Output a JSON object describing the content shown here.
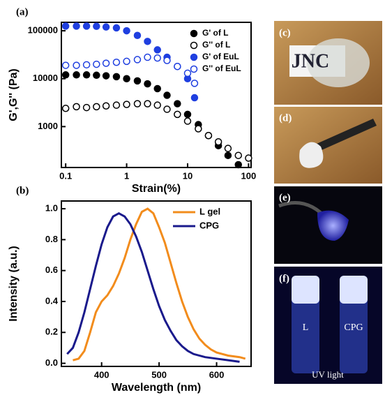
{
  "chart_data": [
    {
      "type": "scatter",
      "panel_label": "(a)",
      "x_label": "Strain(%)",
      "y_label": "G',G'' (Pa)",
      "log_x": true,
      "log_y": true,
      "xlim": [
        0.085,
        110
      ],
      "ylim": [
        140,
        150000
      ],
      "xticks": [
        0.1,
        1,
        10,
        100
      ],
      "yticks": [
        1000,
        10000,
        100000
      ],
      "legend": "upper right",
      "series": [
        {
          "name": "G' of L",
          "color": "#000000",
          "marker": "filled",
          "x": [
            0.1,
            0.15,
            0.22,
            0.32,
            0.46,
            0.68,
            1,
            1.5,
            2.2,
            3.2,
            4.6,
            6.8,
            10,
            15,
            22,
            32,
            46,
            68
          ],
          "values": [
            12000,
            12000,
            12000,
            11800,
            11500,
            11000,
            10000,
            9000,
            7800,
            6200,
            4500,
            3000,
            1800,
            1100,
            650,
            400,
            250,
            160
          ]
        },
        {
          "name": "G'' of L",
          "color": "#000000",
          "marker": "open",
          "x": [
            0.1,
            0.15,
            0.22,
            0.32,
            0.46,
            0.68,
            1,
            1.5,
            2.2,
            3.2,
            4.6,
            6.8,
            10,
            15,
            22,
            32,
            46,
            68,
            100
          ],
          "values": [
            2400,
            2600,
            2500,
            2600,
            2700,
            2800,
            2900,
            3000,
            3000,
            2800,
            2300,
            1800,
            1300,
            900,
            650,
            480,
            350,
            250,
            220
          ]
        },
        {
          "name": "G' of EuL",
          "color": "#1f3fe0",
          "marker": "filled",
          "x": [
            0.1,
            0.15,
            0.22,
            0.32,
            0.46,
            0.68,
            1,
            1.5,
            2.2,
            3.2,
            4.6,
            6.8,
            10,
            13
          ],
          "values": [
            125000,
            125000,
            125000,
            124000,
            120000,
            115000,
            100000,
            80000,
            60000,
            40000,
            28000,
            18000,
            10000,
            4000
          ]
        },
        {
          "name": "G'' of EuL",
          "color": "#1f3fe0",
          "marker": "open",
          "x": [
            0.1,
            0.15,
            0.22,
            0.32,
            0.46,
            0.68,
            1,
            1.5,
            2.2,
            3.2,
            4.6,
            6.8,
            10,
            13
          ],
          "values": [
            19000,
            19000,
            19500,
            20000,
            21000,
            22000,
            23000,
            25000,
            28000,
            27000,
            24000,
            18000,
            13000,
            8000
          ]
        }
      ]
    },
    {
      "type": "line",
      "panel_label": "(b)",
      "x_label": "Wavelength (nm)",
      "y_label": "Intensity (a.u.)",
      "xlim": [
        330,
        660
      ],
      "ylim": [
        -0.02,
        1.05
      ],
      "xticks": [
        400,
        500,
        600
      ],
      "yticks": [
        {
          "value": 0,
          "label": "0.0"
        },
        0.2,
        0.4,
        0.6,
        0.8,
        {
          "value": 1,
          "label": "1.0"
        }
      ],
      "legend": "upper right",
      "series": [
        {
          "name": "L gel",
          "color": "#f28c1c",
          "x": [
            350,
            360,
            370,
            380,
            390,
            400,
            410,
            420,
            430,
            440,
            450,
            460,
            470,
            480,
            490,
            500,
            510,
            520,
            530,
            540,
            550,
            560,
            570,
            580,
            590,
            600,
            620,
            640,
            650
          ],
          "values": [
            0.02,
            0.03,
            0.08,
            0.2,
            0.33,
            0.4,
            0.44,
            0.5,
            0.58,
            0.68,
            0.8,
            0.9,
            0.98,
            1.0,
            0.97,
            0.88,
            0.78,
            0.65,
            0.52,
            0.4,
            0.3,
            0.22,
            0.16,
            0.12,
            0.09,
            0.07,
            0.05,
            0.04,
            0.03
          ]
        },
        {
          "name": "CPG",
          "color": "#1a1a8c",
          "x": [
            340,
            350,
            360,
            370,
            380,
            390,
            400,
            410,
            420,
            430,
            440,
            450,
            460,
            470,
            480,
            490,
            500,
            510,
            520,
            530,
            540,
            550,
            560,
            580,
            600,
            620,
            640
          ],
          "values": [
            0.06,
            0.1,
            0.2,
            0.33,
            0.48,
            0.63,
            0.77,
            0.88,
            0.95,
            0.97,
            0.95,
            0.9,
            0.82,
            0.72,
            0.6,
            0.48,
            0.37,
            0.28,
            0.21,
            0.15,
            0.11,
            0.08,
            0.06,
            0.04,
            0.03,
            0.02,
            0.01
          ]
        }
      ]
    }
  ],
  "photos": [
    {
      "label": "(c)",
      "text": "JNC"
    },
    {
      "label": "(d)"
    },
    {
      "label": "(e)"
    },
    {
      "label": "(f)",
      "texts": [
        "L",
        "CPG",
        "UV light"
      ]
    }
  ]
}
